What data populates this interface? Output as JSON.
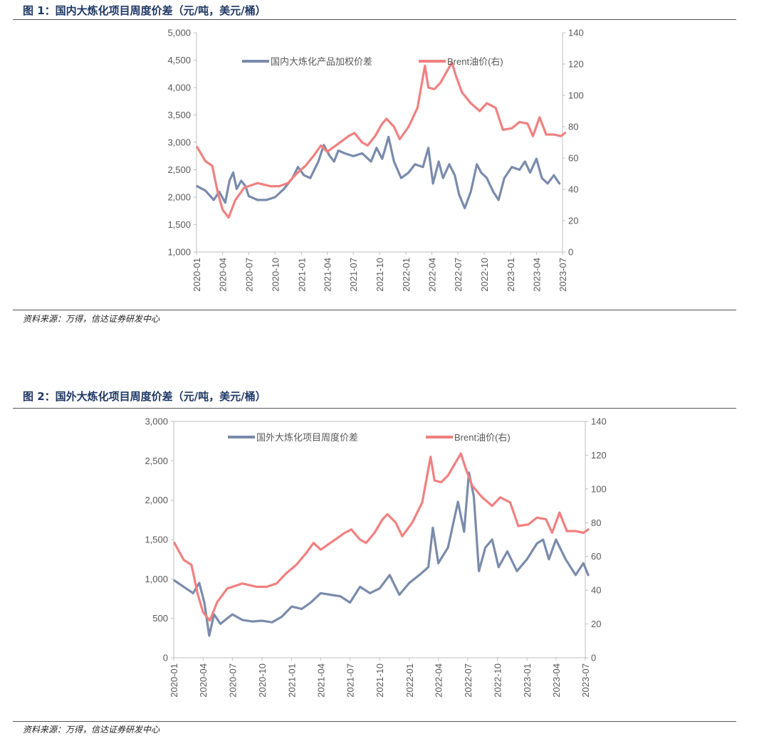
{
  "figures": [
    {
      "title": "图 1：国内大炼化项目周度价差（元/吨，美元/桶）",
      "source": "资料来源：万得，信达证券研发中心"
    },
    {
      "title": "图 2：国外大炼化项目周度价差（元/吨，美元/桶）",
      "source": "资料来源：万得，信达证券研发中心"
    }
  ],
  "chart_data": [
    {
      "type": "line",
      "x": [
        "2020-01",
        "2020-04",
        "2020-07",
        "2020-10",
        "2021-01",
        "2021-04",
        "2021-07",
        "2021-10",
        "2022-01",
        "2022-04",
        "2022-07",
        "2022-10",
        "2023-01",
        "2023-04",
        "2023-07"
      ],
      "x_range": [
        "2020-01",
        "2023-07"
      ],
      "ylim": [
        1000,
        5000
      ],
      "y_ticks": [
        "1,000",
        "1,500",
        "2,000",
        "2,500",
        "3,000",
        "3,500",
        "4,000",
        "4,500",
        "5,000"
      ],
      "y2lim": [
        0,
        140
      ],
      "y2_ticks": [
        "0",
        "20",
        "40",
        "60",
        "80",
        "100",
        "120",
        "140"
      ],
      "legend_position": "top",
      "grid": false,
      "series": [
        {
          "name": "国内大炼化产品加权价差",
          "axis": "left",
          "color": "#7a8bab",
          "points": [
            [
              "2020-01-03",
              2200
            ],
            [
              "2020-02-01",
              2120
            ],
            [
              "2020-03-01",
              1950
            ],
            [
              "2020-03-20",
              2100
            ],
            [
              "2020-04-10",
              1900
            ],
            [
              "2020-04-25",
              2300
            ],
            [
              "2020-05-08",
              2450
            ],
            [
              "2020-05-20",
              2150
            ],
            [
              "2020-06-05",
              2300
            ],
            [
              "2020-06-20",
              2200
            ],
            [
              "2020-07-01",
              2020
            ],
            [
              "2020-08-01",
              1950
            ],
            [
              "2020-09-01",
              1950
            ],
            [
              "2020-10-01",
              2000
            ],
            [
              "2020-11-01",
              2150
            ],
            [
              "2020-12-01",
              2350
            ],
            [
              "2020-12-20",
              2550
            ],
            [
              "2021-01-10",
              2400
            ],
            [
              "2021-02-01",
              2350
            ],
            [
              "2021-03-01",
              2650
            ],
            [
              "2021-03-20",
              2950
            ],
            [
              "2021-04-10",
              2750
            ],
            [
              "2021-04-25",
              2650
            ],
            [
              "2021-05-10",
              2850
            ],
            [
              "2021-06-01",
              2800
            ],
            [
              "2021-07-01",
              2750
            ],
            [
              "2021-08-01",
              2800
            ],
            [
              "2021-09-01",
              2650
            ],
            [
              "2021-09-20",
              2900
            ],
            [
              "2021-10-10",
              2700
            ],
            [
              "2021-11-01",
              3100
            ],
            [
              "2021-11-20",
              2650
            ],
            [
              "2021-12-15",
              2350
            ],
            [
              "2022-01-10",
              2450
            ],
            [
              "2022-02-01",
              2600
            ],
            [
              "2022-03-01",
              2550
            ],
            [
              "2022-03-20",
              2900
            ],
            [
              "2022-04-05",
              2250
            ],
            [
              "2022-04-25",
              2650
            ],
            [
              "2022-05-10",
              2350
            ],
            [
              "2022-06-01",
              2600
            ],
            [
              "2022-06-20",
              2400
            ],
            [
              "2022-07-05",
              2050
            ],
            [
              "2022-07-25",
              1800
            ],
            [
              "2022-08-15",
              2100
            ],
            [
              "2022-09-05",
              2600
            ],
            [
              "2022-09-20",
              2450
            ],
            [
              "2022-10-10",
              2350
            ],
            [
              "2022-11-01",
              2100
            ],
            [
              "2022-11-20",
              1950
            ],
            [
              "2022-12-10",
              2350
            ],
            [
              "2023-01-05",
              2550
            ],
            [
              "2023-02-01",
              2500
            ],
            [
              "2023-02-20",
              2650
            ],
            [
              "2023-03-10",
              2450
            ],
            [
              "2023-04-01",
              2700
            ],
            [
              "2023-04-20",
              2350
            ],
            [
              "2023-05-10",
              2250
            ],
            [
              "2023-06-01",
              2400
            ],
            [
              "2023-06-20",
              2250
            ]
          ]
        },
        {
          "name": "Brent油价(右)",
          "axis": "right",
          "color": "#f08080",
          "points": [
            [
              "2020-01-03",
              67
            ],
            [
              "2020-02-01",
              58
            ],
            [
              "2020-02-25",
              55
            ],
            [
              "2020-03-15",
              38
            ],
            [
              "2020-04-01",
              27
            ],
            [
              "2020-04-22",
              22
            ],
            [
              "2020-05-15",
              33
            ],
            [
              "2020-06-15",
              41
            ],
            [
              "2020-08-01",
              44
            ],
            [
              "2020-09-15",
              42
            ],
            [
              "2020-10-15",
              42
            ],
            [
              "2020-11-15",
              44
            ],
            [
              "2020-12-15",
              50
            ],
            [
              "2021-01-15",
              55
            ],
            [
              "2021-02-15",
              62
            ],
            [
              "2021-03-10",
              68
            ],
            [
              "2021-04-01",
              64
            ],
            [
              "2021-05-01",
              68
            ],
            [
              "2021-06-15",
              74
            ],
            [
              "2021-07-05",
              76
            ],
            [
              "2021-08-01",
              70
            ],
            [
              "2021-08-20",
              68
            ],
            [
              "2021-09-15",
              74
            ],
            [
              "2021-10-10",
              82
            ],
            [
              "2021-10-25",
              85
            ],
            [
              "2021-11-20",
              80
            ],
            [
              "2021-12-10",
              72
            ],
            [
              "2022-01-10",
              80
            ],
            [
              "2022-02-10",
              92
            ],
            [
              "2022-03-08",
              119
            ],
            [
              "2022-03-20",
              105
            ],
            [
              "2022-04-10",
              104
            ],
            [
              "2022-05-01",
              108
            ],
            [
              "2022-06-10",
              121
            ],
            [
              "2022-06-25",
              112
            ],
            [
              "2022-07-15",
              102
            ],
            [
              "2022-08-15",
              95
            ],
            [
              "2022-09-15",
              90
            ],
            [
              "2022-10-10",
              95
            ],
            [
              "2022-11-10",
              92
            ],
            [
              "2022-12-05",
              78
            ],
            [
              "2023-01-05",
              79
            ],
            [
              "2023-02-01",
              83
            ],
            [
              "2023-03-01",
              82
            ],
            [
              "2023-03-20",
              74
            ],
            [
              "2023-04-12",
              86
            ],
            [
              "2023-05-05",
              75
            ],
            [
              "2023-06-01",
              75
            ],
            [
              "2023-06-25",
              74
            ],
            [
              "2023-07-10",
              76
            ]
          ]
        }
      ]
    },
    {
      "type": "line",
      "x": [
        "2020-01",
        "2020-04",
        "2020-07",
        "2020-10",
        "2021-01",
        "2021-04",
        "2021-07",
        "2021-10",
        "2022-01",
        "2022-04",
        "2022-07",
        "2022-10",
        "2023-01",
        "2023-04",
        "2023-07"
      ],
      "x_range": [
        "2020-01",
        "2023-07"
      ],
      "ylim": [
        0,
        3000
      ],
      "y_ticks": [
        "0",
        "500",
        "1,000",
        "1,500",
        "2,000",
        "2,500",
        "3,000"
      ],
      "y2lim": [
        0,
        140
      ],
      "y2_ticks": [
        "0",
        "20",
        "40",
        "60",
        "80",
        "100",
        "120",
        "140"
      ],
      "legend_position": "top",
      "grid": false,
      "series": [
        {
          "name": "国外大炼化项目周度价差",
          "axis": "left",
          "color": "#7a8bab",
          "points": [
            [
              "2020-01-03",
              980
            ],
            [
              "2020-02-01",
              900
            ],
            [
              "2020-03-01",
              820
            ],
            [
              "2020-03-20",
              950
            ],
            [
              "2020-04-05",
              700
            ],
            [
              "2020-04-20",
              280
            ],
            [
              "2020-05-05",
              550
            ],
            [
              "2020-05-25",
              430
            ],
            [
              "2020-06-15",
              500
            ],
            [
              "2020-07-01",
              550
            ],
            [
              "2020-08-01",
              480
            ],
            [
              "2020-09-01",
              460
            ],
            [
              "2020-10-01",
              470
            ],
            [
              "2020-11-01",
              450
            ],
            [
              "2020-12-01",
              520
            ],
            [
              "2021-01-01",
              650
            ],
            [
              "2021-02-01",
              620
            ],
            [
              "2021-03-01",
              700
            ],
            [
              "2021-04-01",
              820
            ],
            [
              "2021-05-01",
              800
            ],
            [
              "2021-06-01",
              780
            ],
            [
              "2021-07-01",
              700
            ],
            [
              "2021-08-01",
              900
            ],
            [
              "2021-09-01",
              820
            ],
            [
              "2021-10-01",
              880
            ],
            [
              "2021-11-01",
              1050
            ],
            [
              "2021-12-01",
              800
            ],
            [
              "2022-01-01",
              950
            ],
            [
              "2022-02-01",
              1050
            ],
            [
              "2022-03-01",
              1150
            ],
            [
              "2022-03-15",
              1650
            ],
            [
              "2022-04-01",
              1200
            ],
            [
              "2022-05-01",
              1400
            ],
            [
              "2022-06-01",
              1980
            ],
            [
              "2022-06-20",
              1600
            ],
            [
              "2022-07-05",
              2350
            ],
            [
              "2022-07-20",
              2050
            ],
            [
              "2022-08-05",
              1100
            ],
            [
              "2022-08-25",
              1400
            ],
            [
              "2022-09-15",
              1500
            ],
            [
              "2022-10-05",
              1150
            ],
            [
              "2022-11-01",
              1350
            ],
            [
              "2022-12-01",
              1100
            ],
            [
              "2023-01-01",
              1250
            ],
            [
              "2023-02-01",
              1450
            ],
            [
              "2023-02-20",
              1500
            ],
            [
              "2023-03-10",
              1250
            ],
            [
              "2023-04-01",
              1500
            ],
            [
              "2023-05-01",
              1250
            ],
            [
              "2023-06-01",
              1050
            ],
            [
              "2023-06-25",
              1200
            ],
            [
              "2023-07-10",
              1050
            ]
          ]
        },
        {
          "name": "Brent油价(右)",
          "axis": "right",
          "color": "#f08080",
          "points": [
            [
              "2020-01-03",
              68
            ],
            [
              "2020-02-01",
              58
            ],
            [
              "2020-02-25",
              55
            ],
            [
              "2020-03-15",
              38
            ],
            [
              "2020-04-01",
              27
            ],
            [
              "2020-04-22",
              22
            ],
            [
              "2020-05-15",
              33
            ],
            [
              "2020-06-15",
              41
            ],
            [
              "2020-08-01",
              44
            ],
            [
              "2020-09-15",
              42
            ],
            [
              "2020-10-15",
              42
            ],
            [
              "2020-11-15",
              44
            ],
            [
              "2020-12-15",
              50
            ],
            [
              "2021-01-15",
              55
            ],
            [
              "2021-02-15",
              62
            ],
            [
              "2021-03-10",
              68
            ],
            [
              "2021-04-01",
              64
            ],
            [
              "2021-05-01",
              68
            ],
            [
              "2021-06-15",
              74
            ],
            [
              "2021-07-05",
              76
            ],
            [
              "2021-08-01",
              70
            ],
            [
              "2021-08-20",
              68
            ],
            [
              "2021-09-15",
              74
            ],
            [
              "2021-10-10",
              82
            ],
            [
              "2021-10-25",
              85
            ],
            [
              "2021-11-20",
              80
            ],
            [
              "2021-12-10",
              72
            ],
            [
              "2022-01-10",
              80
            ],
            [
              "2022-02-10",
              92
            ],
            [
              "2022-03-08",
              119
            ],
            [
              "2022-03-20",
              105
            ],
            [
              "2022-04-10",
              104
            ],
            [
              "2022-05-01",
              108
            ],
            [
              "2022-06-10",
              121
            ],
            [
              "2022-06-25",
              112
            ],
            [
              "2022-07-15",
              102
            ],
            [
              "2022-08-15",
              95
            ],
            [
              "2022-09-15",
              90
            ],
            [
              "2022-10-10",
              95
            ],
            [
              "2022-11-10",
              92
            ],
            [
              "2022-12-05",
              78
            ],
            [
              "2023-01-05",
              79
            ],
            [
              "2023-02-01",
              83
            ],
            [
              "2023-03-01",
              82
            ],
            [
              "2023-03-20",
              74
            ],
            [
              "2023-04-12",
              86
            ],
            [
              "2023-05-05",
              75
            ],
            [
              "2023-06-01",
              75
            ],
            [
              "2023-06-25",
              74
            ],
            [
              "2023-07-10",
              76
            ]
          ]
        }
      ]
    }
  ]
}
